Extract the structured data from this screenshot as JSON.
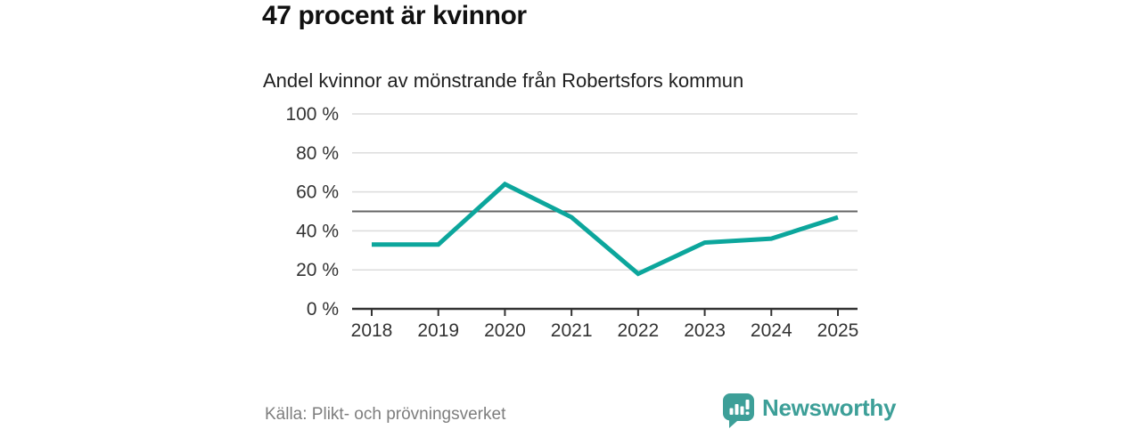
{
  "header": {
    "title": "47 procent är kvinnor",
    "subtitle": "Andel kvinnor av mönstrande från Robertsfors kommun"
  },
  "footer": {
    "source": "Källa: Plikt- och prövningsverket",
    "brand": "Newsworthy"
  },
  "colors": {
    "line": "#0ca69c",
    "reference_line": "#666666",
    "grid": "#dcdcdc",
    "axis": "#333333",
    "tick_label": "#333333",
    "muted_text": "#7e7e7e",
    "brand": "#3d9f98"
  },
  "chart_data": {
    "type": "line",
    "title": "47 procent är kvinnor",
    "subtitle": "Andel kvinnor av mönstrande från Robertsfors kommun",
    "x": [
      2018,
      2019,
      2020,
      2021,
      2022,
      2023,
      2024,
      2025
    ],
    "series": [
      {
        "name": "Andel kvinnor av mönstrande",
        "values": [
          33,
          33,
          64,
          47,
          18,
          34,
          36,
          47
        ]
      }
    ],
    "xlabel": "",
    "ylabel": "",
    "ylim": [
      0,
      100
    ],
    "yticks": [
      0,
      20,
      40,
      60,
      80,
      100
    ],
    "ytick_format": "{v} %",
    "reference_line": 50,
    "grid": true,
    "legend": false
  }
}
